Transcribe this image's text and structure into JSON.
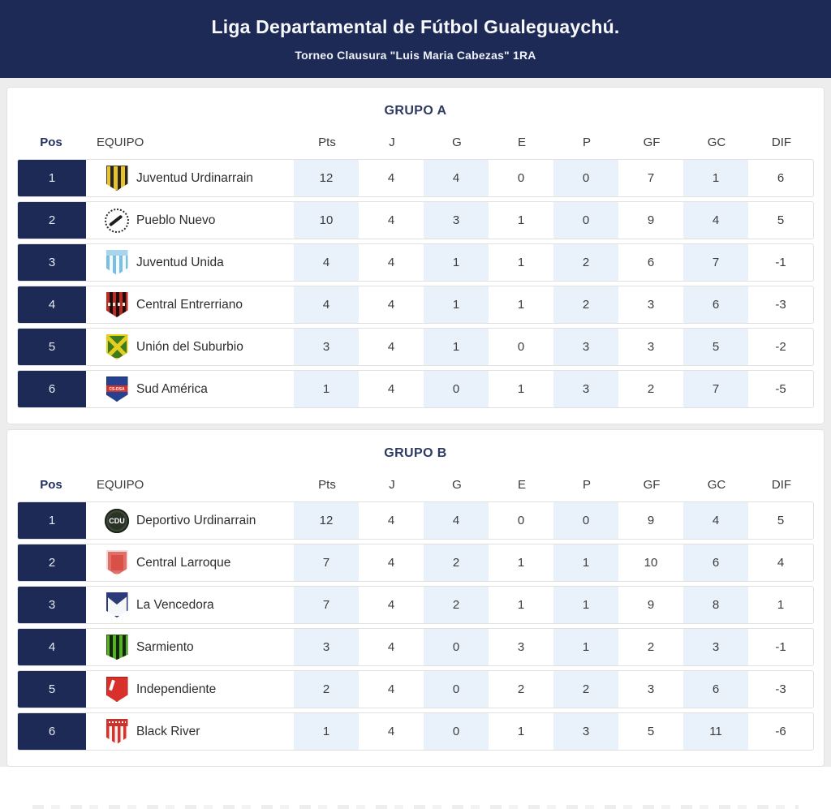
{
  "header": {
    "title": "Liga Departamental de Fútbol Gualeguaychú.",
    "subtitle": "Torneo Clausura \"Luis Maria Cabezas\" 1RA"
  },
  "columns": {
    "pos": "Pos",
    "team": "EQUIPO",
    "stats": [
      "Pts",
      "J",
      "G",
      "E",
      "P",
      "GF",
      "GC",
      "DIF"
    ]
  },
  "groups": [
    {
      "title": "GRUPO A",
      "rows": [
        {
          "pos": "1",
          "team": "Juventud Urdinarrain",
          "badge_icon": "badge-juventud-urdinarrain",
          "stats": [
            "12",
            "4",
            "4",
            "0",
            "0",
            "7",
            "1",
            "6"
          ]
        },
        {
          "pos": "2",
          "team": "Pueblo Nuevo",
          "badge_icon": "badge-pueblo-nuevo",
          "stats": [
            "10",
            "4",
            "3",
            "1",
            "0",
            "9",
            "4",
            "5"
          ]
        },
        {
          "pos": "3",
          "team": "Juventud Unida",
          "badge_icon": "badge-juventud-unida",
          "stats": [
            "4",
            "4",
            "1",
            "1",
            "2",
            "6",
            "7",
            "-1"
          ]
        },
        {
          "pos": "4",
          "team": "Central Entrerriano",
          "badge_icon": "badge-central-entrerriano",
          "stats": [
            "4",
            "4",
            "1",
            "1",
            "2",
            "3",
            "6",
            "-3"
          ]
        },
        {
          "pos": "5",
          "team": "Unión del Suburbio",
          "badge_icon": "badge-union-del-suburbio",
          "stats": [
            "3",
            "4",
            "1",
            "0",
            "3",
            "3",
            "5",
            "-2"
          ]
        },
        {
          "pos": "6",
          "team": "Sud América",
          "badge_icon": "badge-sud-america",
          "badge_text": "CS-DSA",
          "stats": [
            "1",
            "4",
            "0",
            "1",
            "3",
            "2",
            "7",
            "-5"
          ]
        }
      ]
    },
    {
      "title": "GRUPO B",
      "rows": [
        {
          "pos": "1",
          "team": "Deportivo Urdinarrain",
          "badge_icon": "badge-deportivo-urdinarrain",
          "badge_text": "CDU",
          "stats": [
            "12",
            "4",
            "4",
            "0",
            "0",
            "9",
            "4",
            "5"
          ]
        },
        {
          "pos": "2",
          "team": "Central Larroque",
          "badge_icon": "badge-central-larroque",
          "stats": [
            "7",
            "4",
            "2",
            "1",
            "1",
            "10",
            "6",
            "4"
          ]
        },
        {
          "pos": "3",
          "team": "La Vencedora",
          "badge_icon": "badge-la-vencedora",
          "stats": [
            "7",
            "4",
            "2",
            "1",
            "1",
            "9",
            "8",
            "1"
          ]
        },
        {
          "pos": "4",
          "team": "Sarmiento",
          "badge_icon": "badge-sarmiento",
          "stats": [
            "3",
            "4",
            "0",
            "3",
            "1",
            "2",
            "3",
            "-1"
          ]
        },
        {
          "pos": "5",
          "team": "Independiente",
          "badge_icon": "badge-independiente",
          "stats": [
            "2",
            "4",
            "0",
            "2",
            "2",
            "3",
            "6",
            "-3"
          ]
        },
        {
          "pos": "6",
          "team": "Black River",
          "badge_icon": "badge-black-river",
          "stats": [
            "1",
            "4",
            "0",
            "1",
            "3",
            "5",
            "11",
            "-6"
          ]
        }
      ]
    }
  ],
  "colors": {
    "navy": "#1e2a56",
    "column_shade": "#e9f2fa",
    "card_border": "#e2e2e2"
  }
}
